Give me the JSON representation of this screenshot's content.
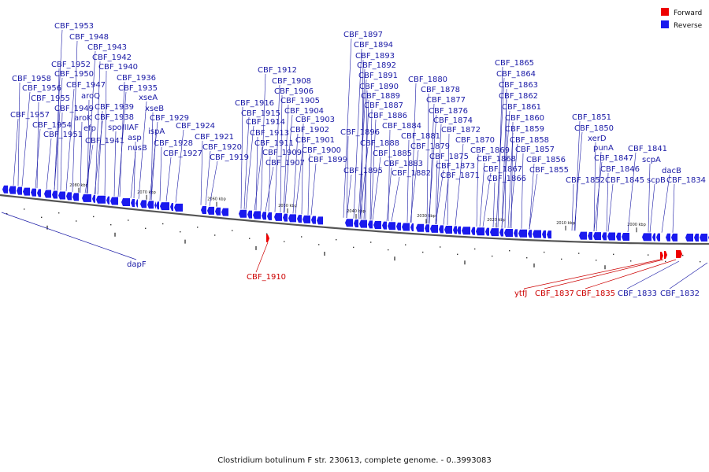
{
  "caption": "Clostridium botulinum F str. 230613, complete genome. - 0..3993083",
  "legend": [
    {
      "label": "Forward",
      "color": "#ee0000"
    },
    {
      "label": "Reverse",
      "color": "#1a1aee"
    }
  ],
  "ticks": [
    "2080 kbp",
    "2070 kbp",
    "2060 kbp",
    "2050 kbp",
    "2040 kbp",
    "2030 kbp",
    "2020 kbp",
    "2010 kbp",
    "2000 kbp"
  ],
  "genes_reverse_above": [
    "CBF_1958",
    "CBF_1957",
    "CBF_1956",
    "CBF_1955",
    "CBF_1954",
    "CBF_1953",
    "CBF_1952",
    "CBF_1951",
    "CBF_1950",
    "CBF_1949",
    "CBF_1948",
    "CBF_1947",
    "aroK",
    "efp",
    "CBF_1943",
    "aroQ",
    "CBF_1942",
    "CBF_1941",
    "CBF_1940",
    "CBF_1939",
    "CBF_1938",
    "spoIIIAF",
    "CBF_1936",
    "CBF_1935",
    "asp",
    "nusB",
    "xseA",
    "xseB",
    "ispA",
    "CBF_1929",
    "CBF_1928",
    "CBF_1927",
    "CBF_1924",
    "CBF_1921",
    "CBF_1920",
    "CBF_1919",
    "CBF_1916",
    "CBF_1915",
    "CBF_1914",
    "CBF_1913",
    "CBF_1912",
    "CBF_1911",
    "CBF_1909",
    "CBF_1908",
    "CBF_1907",
    "CBF_1906",
    "CBF_1905",
    "CBF_1904",
    "CBF_1903",
    "CBF_1902",
    "CBF_1901",
    "CBF_1900",
    "CBF_1899",
    "CBF_1897",
    "CBF_1896",
    "CBF_1895",
    "CBF_1894",
    "CBF_1893",
    "CBF_1892",
    "CBF_1891",
    "CBF_1890",
    "CBF_1889",
    "CBF_1888",
    "CBF_1887",
    "CBF_1886",
    "CBF_1885",
    "CBF_1884",
    "CBF_1883",
    "CBF_1882",
    "CBF_1881",
    "CBF_1880",
    "CBF_1879",
    "CBF_1878",
    "CBF_1877",
    "CBF_1876",
    "CBF_1875",
    "CBF_1874",
    "CBF_1873",
    "CBF_1872",
    "CBF_1871",
    "CBF_1870",
    "CBF_1869",
    "CBF_1868",
    "CBF_1867",
    "CBF_1866",
    "CBF_1865",
    "CBF_1864",
    "CBF_1863",
    "CBF_1862",
    "CBF_1861",
    "CBF_1860",
    "CBF_1859",
    "CBF_1858",
    "CBF_1857",
    "CBF_1856",
    "CBF_1855",
    "CBF_1852",
    "CBF_1851",
    "CBF_1850",
    "xerD",
    "punA",
    "CBF_1847",
    "CBF_1846",
    "CBF_1845",
    "CBF_1841",
    "scpA",
    "scpB",
    "dacB",
    "CBF_1834"
  ],
  "genes_below": [
    {
      "label": "dapF",
      "strand": "reverse"
    },
    {
      "label": "CBF_1910",
      "strand": "forward"
    },
    {
      "label": "ytfJ",
      "strand": "forward"
    },
    {
      "label": "CBF_1837",
      "strand": "forward"
    },
    {
      "label": "CBF_1835",
      "strand": "forward"
    },
    {
      "label": "CBF_1833",
      "strand": "reverse"
    },
    {
      "label": "CBF_1832",
      "strand": "reverse"
    }
  ]
}
